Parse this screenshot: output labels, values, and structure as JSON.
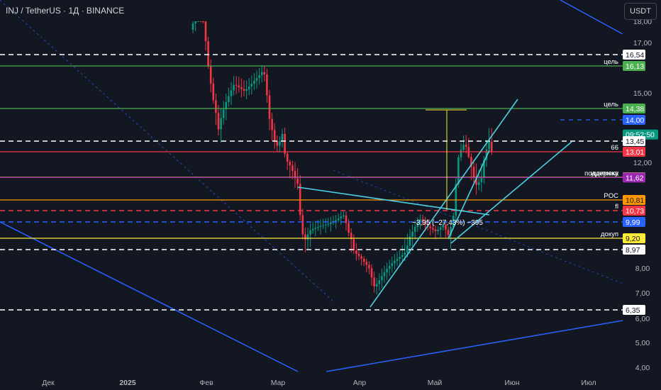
{
  "header": {
    "ticker": "INJ / TetherUS · 1Д · BINANCE",
    "currency_button": "USDT"
  },
  "price_axis": {
    "ticks": [
      {
        "label": "18,00",
        "v": 18.0
      },
      {
        "label": "17,00",
        "v": 17.0
      },
      {
        "label": "15,00",
        "v": 15.0
      },
      {
        "label": "12,00",
        "v": 12.0
      },
      {
        "label": "8,00",
        "v": 8.0
      },
      {
        "label": "7,00",
        "v": 7.0
      },
      {
        "label": "6,00",
        "v": 6.0
      },
      {
        "label": "5,00",
        "v": 5.0
      },
      {
        "label": "4,00",
        "v": 4.0
      }
    ],
    "price_labels": [
      {
        "text": "16,54",
        "v": 16.54,
        "bg": "#ffffff",
        "fg": "#131722"
      },
      {
        "text": "16,13",
        "v": 16.13,
        "bg": "#4caf50",
        "fg": "#ffffff"
      },
      {
        "text": "14,38",
        "v": 14.38,
        "bg": "#4caf50",
        "fg": "#ffffff"
      },
      {
        "text": "14,00",
        "v": 14.0,
        "bg": "#2962ff",
        "fg": "#ffffff"
      },
      {
        "text": "09:52:50",
        "v": 13.62,
        "bg": "#089981",
        "fg": "#ffffff"
      },
      {
        "text": "13,45",
        "v": 13.45,
        "bg": "#ffffff",
        "fg": "#131722"
      },
      {
        "text": "13,01",
        "v": 13.01,
        "bg": "#f23645",
        "fg": "#ffffff"
      },
      {
        "text": "11,63",
        "v": 11.63,
        "bg": "#ffeb3b",
        "fg": "#131722"
      },
      {
        "text": "11,62",
        "v": 11.62,
        "bg": "#9c27b0",
        "fg": "#ffffff"
      },
      {
        "text": "10,81",
        "v": 10.81,
        "bg": "#ff9800",
        "fg": "#131722"
      },
      {
        "text": "10,73",
        "v": 10.73,
        "bg": "#f23645",
        "fg": "#ffffff"
      },
      {
        "text": "9,99",
        "v": 9.99,
        "bg": "#2962ff",
        "fg": "#ffffff"
      },
      {
        "text": "9,20",
        "v": 9.2,
        "bg": "#ffeb3b",
        "fg": "#131722"
      },
      {
        "text": "8,97",
        "v": 8.97,
        "bg": "#ffffff",
        "fg": "#131722"
      },
      {
        "text": "6,35",
        "v": 6.35,
        "bg": "#ffffff",
        "fg": "#131722"
      }
    ]
  },
  "time_axis": {
    "labels": [
      {
        "text": "Дек",
        "m": 0
      },
      {
        "text": "2025",
        "m": 1
      },
      {
        "text": "Фев",
        "m": 2
      },
      {
        "text": "Мар",
        "m": 3
      },
      {
        "text": "Апр",
        "m": 4
      },
      {
        "text": "Май",
        "m": 5
      },
      {
        "text": "Июн",
        "m": 6
      },
      {
        "text": "Июл",
        "m": 7
      }
    ]
  },
  "levels": [
    {
      "v": 16.54,
      "style": "dashed",
      "color": "#ffffff",
      "label": ""
    },
    {
      "v": 16.13,
      "style": "solid",
      "color": "#4caf50",
      "label": "цель"
    },
    {
      "v": 14.38,
      "style": "solid",
      "color": "#4caf50",
      "label": "цель"
    },
    {
      "v": 14.0,
      "style": "dashed-short",
      "color": "#2962ff",
      "label": ""
    },
    {
      "v": 13.45,
      "style": "dashed",
      "color": "#ffffff",
      "label": ""
    },
    {
      "v": 13.01,
      "style": "solid",
      "color": "#f23645",
      "label": "66"
    },
    {
      "v": 11.63,
      "style": "solid",
      "color": "#ffeb3b",
      "label": "ишимоку"
    },
    {
      "v": 11.62,
      "style": "solid",
      "color": "#9c27b0",
      "label": "поддержка"
    },
    {
      "v": 10.81,
      "style": "solid",
      "color": "#ff9800",
      "label": "POC"
    },
    {
      "v": 10.73,
      "style": "dashed",
      "color": "#f23645",
      "label": "fl"
    },
    {
      "v": 9.99,
      "style": "dashed",
      "color": "#2962ff",
      "label": ""
    },
    {
      "v": 9.2,
      "style": "solid",
      "color": "#ffeb3b",
      "label": "докуп"
    },
    {
      "v": 8.97,
      "style": "dashed",
      "color": "#ffffff",
      "label": ""
    },
    {
      "v": 6.35,
      "style": "dashed",
      "color": "#ffffff",
      "label": ""
    }
  ],
  "measure_label": "−3,95 (−27,43%) −395",
  "colors": {
    "background": "#131722",
    "up": "#089981",
    "down": "#f23645",
    "trendline": "#4dd0e1",
    "channel": "#2962ff",
    "axis_text": "#b2b5be"
  }
}
